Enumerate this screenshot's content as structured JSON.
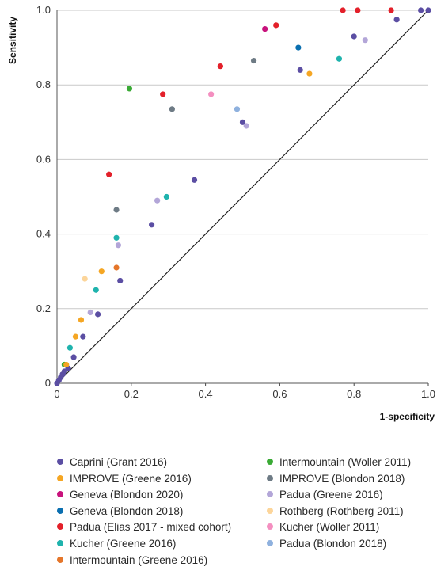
{
  "chart_data": {
    "type": "scatter",
    "title": "",
    "xlabel": "1-specificity",
    "ylabel": "Sensitivity",
    "xlim": [
      0,
      1
    ],
    "ylim": [
      0,
      1
    ],
    "x_ticks": [
      "0",
      "0.2",
      "0.4",
      "0.6",
      "0.8",
      "1.0"
    ],
    "y_ticks": [
      "0",
      "0.2",
      "0.4",
      "0.6",
      "0.8",
      "1.0"
    ],
    "diagonal_reference_line": true,
    "grid": "horizontal",
    "legend_position": "bottom",
    "series": [
      {
        "name": "Caprini (Grant 2016)",
        "color": "#5b4ea3",
        "points": [
          [
            0,
            0
          ],
          [
            0.005,
            0.008
          ],
          [
            0.01,
            0.016
          ],
          [
            0.015,
            0.024
          ],
          [
            0.02,
            0.032
          ],
          [
            0.03,
            0.04
          ],
          [
            0.045,
            0.07
          ],
          [
            0.07,
            0.125
          ],
          [
            0.11,
            0.185
          ],
          [
            0.17,
            0.275
          ],
          [
            0.255,
            0.425
          ],
          [
            0.37,
            0.545
          ],
          [
            0.5,
            0.7
          ],
          [
            0.655,
            0.84
          ],
          [
            0.8,
            0.93
          ],
          [
            0.915,
            0.975
          ],
          [
            0.98,
            1.0
          ],
          [
            1.0,
            1.0
          ]
        ]
      },
      {
        "name": "Intermountain (Woller 2011)",
        "color": "#3aaa35",
        "points": [
          [
            0.02,
            0.05
          ],
          [
            0.195,
            0.79
          ]
        ]
      },
      {
        "name": "IMPROVE (Greene 2016)",
        "color": "#f5a623",
        "points": [
          [
            0.025,
            0.05
          ],
          [
            0.05,
            0.125
          ],
          [
            0.065,
            0.17
          ],
          [
            0.12,
            0.3
          ],
          [
            0.68,
            0.83
          ]
        ]
      },
      {
        "name": "IMPROVE (Blondon 2018)",
        "color": "#6e7b85",
        "points": [
          [
            0.16,
            0.465
          ],
          [
            0.31,
            0.735
          ],
          [
            0.53,
            0.865
          ]
        ]
      },
      {
        "name": "Geneva (Blondon 2020)",
        "color": "#c8127c",
        "points": [
          [
            0.56,
            0.95
          ]
        ]
      },
      {
        "name": "Padua (Greene 2016)",
        "color": "#b3a6d8",
        "points": [
          [
            0.09,
            0.19
          ],
          [
            0.165,
            0.37
          ],
          [
            0.27,
            0.49
          ],
          [
            0.51,
            0.69
          ],
          [
            0.83,
            0.92
          ]
        ]
      },
      {
        "name": "Geneva (Blondon 2018)",
        "color": "#0a6fb0",
        "points": [
          [
            0.65,
            0.9
          ]
        ]
      },
      {
        "name": "Rothberg (Rothberg 2011)",
        "color": "#fcd59a",
        "points": [
          [
            0.075,
            0.28
          ]
        ]
      },
      {
        "name": "Padua (Elias 2017 - mixed cohort)",
        "color": "#e3202a",
        "points": [
          [
            0.14,
            0.56
          ],
          [
            0.285,
            0.775
          ],
          [
            0.44,
            0.85
          ],
          [
            0.59,
            0.96
          ],
          [
            0.77,
            1.0
          ],
          [
            0.81,
            1.0
          ],
          [
            0.9,
            1.0
          ]
        ]
      },
      {
        "name": "Kucher (Woller 2011)",
        "color": "#f48fc0",
        "points": [
          [
            0.415,
            0.775
          ]
        ]
      },
      {
        "name": "Kucher (Greene 2016)",
        "color": "#1fb3ad",
        "points": [
          [
            0.035,
            0.095
          ],
          [
            0.105,
            0.25
          ],
          [
            0.16,
            0.39
          ],
          [
            0.295,
            0.5
          ],
          [
            0.76,
            0.87
          ]
        ]
      },
      {
        "name": "Padua (Blondon 2018)",
        "color": "#8fb1de",
        "points": [
          [
            0.485,
            0.735
          ]
        ]
      },
      {
        "name": "Intermountain (Greene 2016)",
        "color": "#e5762a",
        "points": [
          [
            0.16,
            0.31
          ]
        ]
      }
    ]
  }
}
